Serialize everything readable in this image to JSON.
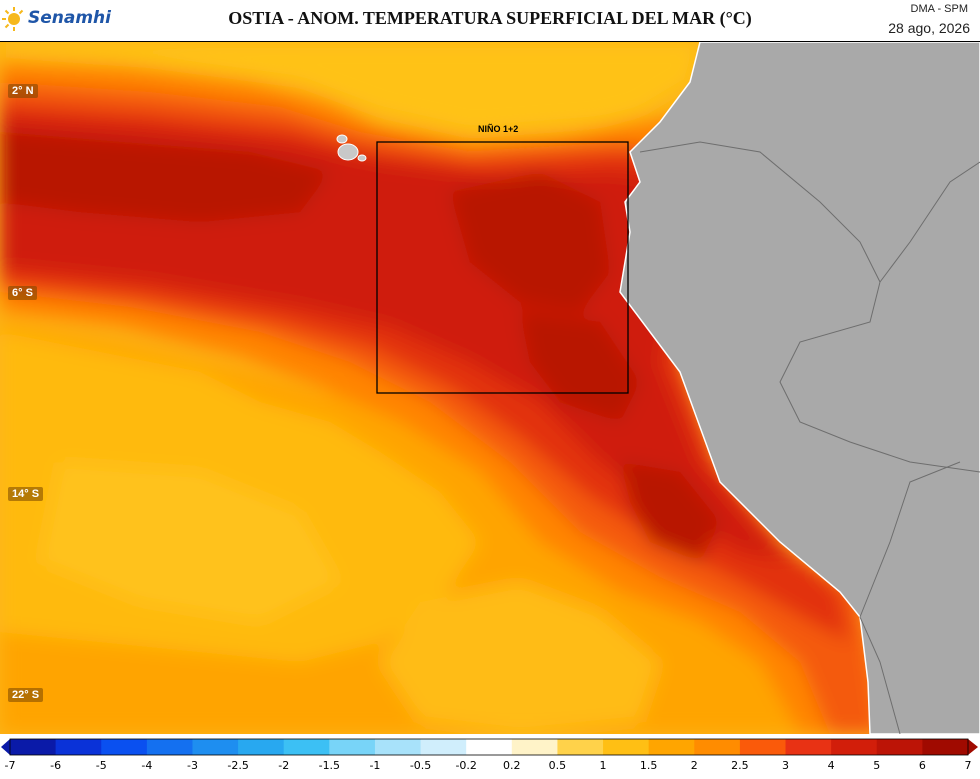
{
  "header": {
    "logo_text": "Senamhi",
    "title": "OSTIA - ANOM. TEMPERATURA SUPERFICIAL DEL MAR (°C)",
    "source": "DMA - SPM",
    "date": "28 ago, 2026"
  },
  "map": {
    "lat_labels": [
      "2° N",
      "6° S",
      "14° S",
      "22° S"
    ],
    "region_label": "NIÑO 1+2",
    "land_color": "#a9a9a9"
  },
  "colorbar": {
    "tick_labels": [
      "-7",
      "-6",
      "-5",
      "-4",
      "-3",
      "-2.5",
      "-2",
      "-1.5",
      "-1",
      "-0.5",
      "-0.2",
      "0.2",
      "0.5",
      "1",
      "1.5",
      "2",
      "2.5",
      "3",
      "4",
      "5",
      "6",
      "7"
    ],
    "colors": [
      "#0a1aa8",
      "#0a32d8",
      "#0a50f0",
      "#1470f0",
      "#1e8ef0",
      "#28a8f0",
      "#3cc0f4",
      "#78d4f8",
      "#a8e2fa",
      "#d0eefc",
      "#ffffff",
      "#fff3c8",
      "#ffd24a",
      "#ffbf14",
      "#ffa500",
      "#ff8c00",
      "#fa5a0a",
      "#e83214",
      "#d21e0a",
      "#bc1406",
      "#a00a00"
    ]
  }
}
